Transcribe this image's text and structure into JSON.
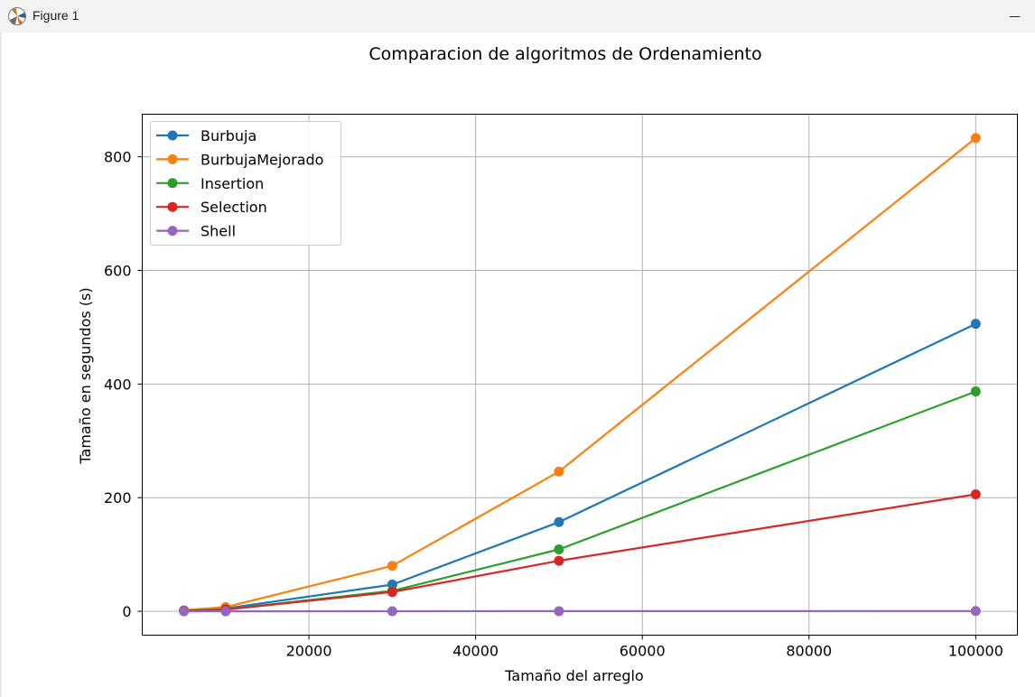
{
  "window": {
    "title": "Figure 1",
    "icon": "matplotlib-icon",
    "minimize_icon": "minimize-icon"
  },
  "chart_data": {
    "type": "line",
    "title": "Comparacion de algoritmos de Ordenamiento",
    "xlabel": "Tamaño del arreglo",
    "ylabel": "Tamaño en segundos  (s)",
    "x": [
      5000,
      10000,
      30000,
      50000,
      100000
    ],
    "xlim": [
      0,
      105000
    ],
    "ylim": [
      -42,
      875
    ],
    "xticks": [
      20000,
      40000,
      60000,
      80000,
      100000
    ],
    "yticks": [
      0,
      200,
      400,
      600,
      800
    ],
    "grid": true,
    "legend_position": "upper-left",
    "series": [
      {
        "name": "Burbuja",
        "color": "#1f77b4",
        "values": [
          1.2,
          5,
          47,
          157,
          506
        ]
      },
      {
        "name": "BurbujaMejorado",
        "color": "#ff7f0e",
        "values": [
          1.8,
          7.5,
          80,
          246,
          833
        ]
      },
      {
        "name": "Insertion",
        "color": "#2ca02c",
        "values": [
          0.9,
          3.5,
          36,
          109,
          387
        ]
      },
      {
        "name": "Selection",
        "color": "#d62728",
        "values": [
          0.8,
          3,
          34,
          89,
          206
        ]
      },
      {
        "name": "Shell",
        "color": "#9467bd",
        "values": [
          0.01,
          0.03,
          0.1,
          0.2,
          0.5
        ]
      }
    ]
  }
}
